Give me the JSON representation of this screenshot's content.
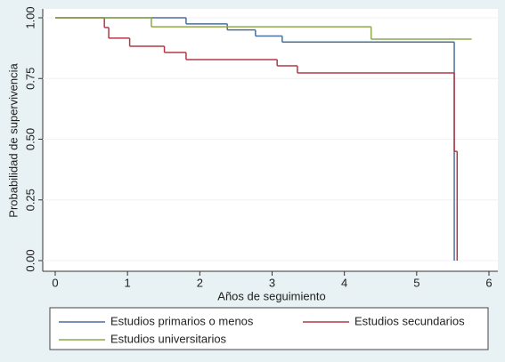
{
  "chart_data": {
    "type": "step",
    "xlabel": "Años de seguimiento",
    "ylabel": "Probabilidad de supervivencia",
    "xlim": [
      0,
      6
    ],
    "xticks": [
      0,
      1,
      2,
      3,
      4,
      5,
      6
    ],
    "ylim": [
      0,
      1
    ],
    "yticks": [
      {
        "value": 0,
        "label": "0.00"
      },
      {
        "value": 0.25,
        "label": "0.25"
      },
      {
        "value": 0.5,
        "label": "0.50"
      },
      {
        "value": 0.75,
        "label": "0.75"
      },
      {
        "value": 1,
        "label": "1.00"
      }
    ],
    "series": [
      {
        "name": "Estudios primarios o menos",
        "color": "#4a6f9a",
        "x": [
          0,
          1.81,
          2.38,
          2.77,
          3.14,
          5.52
        ],
        "values": [
          1,
          0.975,
          0.95,
          0.925,
          0.9,
          0
        ]
      },
      {
        "name": "Estudios secundarios",
        "color": "#b23a48",
        "x": [
          0,
          0.68,
          0.74,
          1.03,
          1.51,
          1.81,
          3.07,
          3.35,
          5.52,
          5.56
        ],
        "values": [
          1,
          0.96,
          0.916,
          0.883,
          0.857,
          0.828,
          0.802,
          0.773,
          0.45,
          0
        ]
      },
      {
        "name": "Estudios universitarios",
        "color": "#8fa84a",
        "x": [
          0,
          1.33,
          4.37,
          5.76
        ],
        "values": [
          1,
          0.963,
          0.912,
          0.912
        ]
      }
    ]
  }
}
